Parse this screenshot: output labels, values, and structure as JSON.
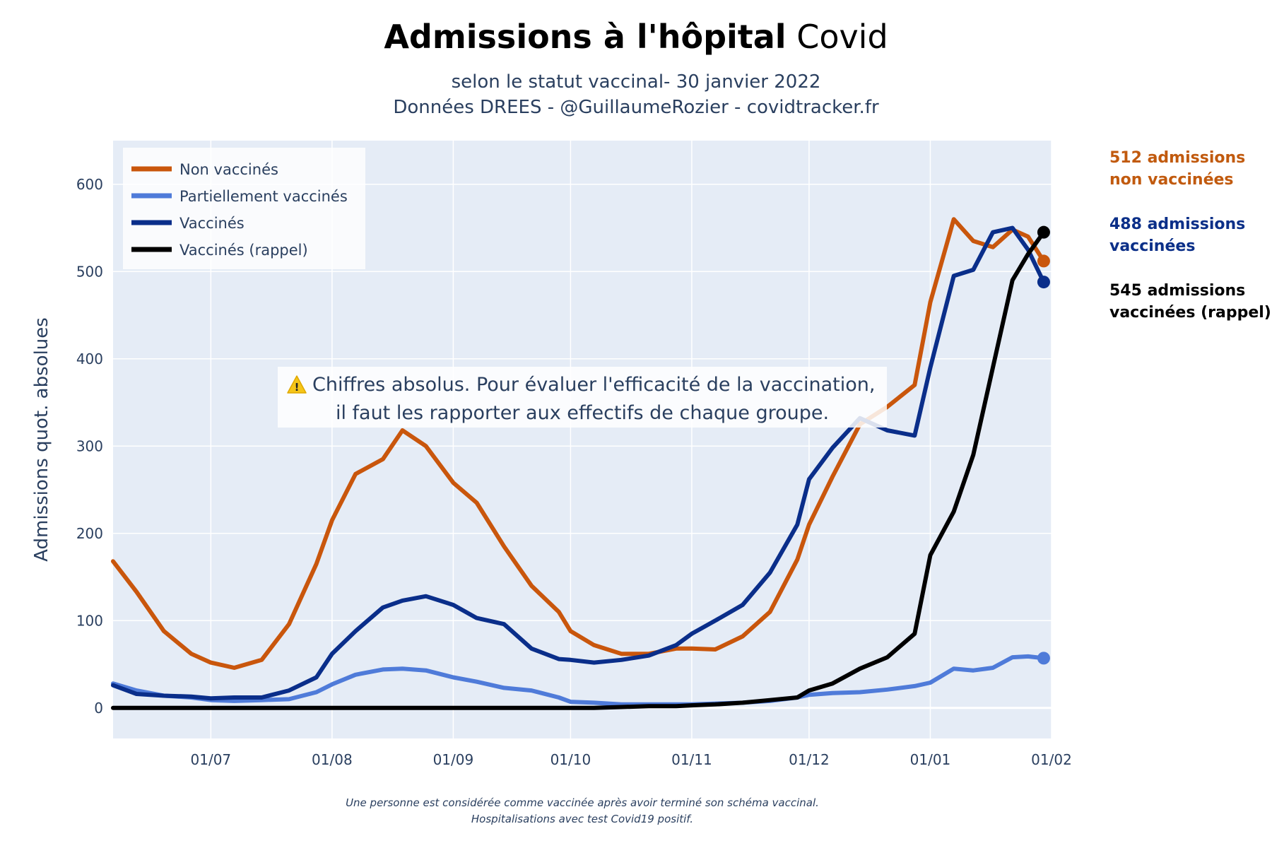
{
  "title_bold": "Admissions à l'hôpital",
  "title_rest": " Covid",
  "subtitle_line1": "selon le statut vaccinal- 30 janvier 2022",
  "subtitle_line2": "Données DREES - @GuillaumeRozier - covidtracker.fr",
  "warning_line1": "Chiffres absolus. Pour évaluer l'efficacité de la vaccination,",
  "warning_line2": "il faut les rapporter aux effectifs de chaque groupe.",
  "footnote_line1": "Une personne est considérée comme vaccinée après avoir terminé son schéma vaccinal.",
  "footnote_line2": "Hospitalisations avec test Covid19 positif.",
  "side_labels": [
    {
      "line1": "512 admissions",
      "line2": "non vaccinées",
      "color": "#c15a0e"
    },
    {
      "line1": "488 admissions",
      "line2": "vaccinées",
      "color": "#0b2f88"
    },
    {
      "line1": "545 admissions",
      "line2": "vaccinées (rappel)",
      "color": "#000000"
    }
  ],
  "chart_data": {
    "type": "line",
    "title": "Admissions à l'hôpital Covid",
    "ylabel": "Admissions quot. absolues",
    "xlabel": "",
    "x_ticks": [
      "01/07",
      "01/08",
      "01/09",
      "01/10",
      "01/11",
      "01/12",
      "01/01",
      "01/02"
    ],
    "y_ticks": [
      0,
      100,
      200,
      300,
      400,
      500,
      600
    ],
    "xlim": [
      "2021-06-06",
      "2022-02-01"
    ],
    "ylim": [
      -35,
      650
    ],
    "legend_position": "top-left",
    "grid": true,
    "x": [
      "2021-06-06",
      "2021-06-12",
      "2021-06-19",
      "2021-06-26",
      "2021-07-01",
      "2021-07-07",
      "2021-07-14",
      "2021-07-21",
      "2021-07-28",
      "2021-08-01",
      "2021-08-07",
      "2021-08-14",
      "2021-08-19",
      "2021-08-25",
      "2021-09-01",
      "2021-09-07",
      "2021-09-14",
      "2021-09-21",
      "2021-09-28",
      "2021-10-01",
      "2021-10-07",
      "2021-10-14",
      "2021-10-21",
      "2021-10-28",
      "2021-11-01",
      "2021-11-07",
      "2021-11-14",
      "2021-11-21",
      "2021-11-28",
      "2021-12-01",
      "2021-12-07",
      "2021-12-14",
      "2021-12-21",
      "2021-12-28",
      "2022-01-01",
      "2022-01-07",
      "2022-01-12",
      "2022-01-17",
      "2022-01-22",
      "2022-01-26",
      "2022-01-30"
    ],
    "series": [
      {
        "name": "Non vaccinés",
        "color": "#c9560c",
        "end_marker": true,
        "values": [
          168,
          133,
          88,
          62,
          52,
          46,
          55,
          96,
          165,
          215,
          268,
          285,
          318,
          300,
          258,
          235,
          185,
          140,
          110,
          88,
          72,
          62,
          62,
          68,
          68,
          67,
          82,
          110,
          170,
          210,
          265,
          325,
          345,
          370,
          465,
          560,
          535,
          528,
          548,
          540,
          512
        ]
      },
      {
        "name": "Partiellement vaccinés",
        "color": "#4f7bd9",
        "end_marker": true,
        "values": [
          28,
          20,
          14,
          12,
          9,
          8,
          9,
          10,
          18,
          27,
          38,
          44,
          45,
          43,
          35,
          30,
          23,
          20,
          12,
          7,
          6,
          4,
          4,
          4,
          4,
          5,
          6,
          8,
          12,
          15,
          17,
          18,
          21,
          25,
          29,
          45,
          43,
          46,
          58,
          59,
          57
        ]
      },
      {
        "name": "Vaccinés",
        "color": "#0a2e8a",
        "end_marker": true,
        "values": [
          26,
          16,
          14,
          13,
          11,
          12,
          12,
          20,
          35,
          62,
          88,
          115,
          123,
          128,
          118,
          103,
          96,
          68,
          56,
          55,
          52,
          55,
          60,
          72,
          85,
          100,
          118,
          155,
          210,
          262,
          298,
          332,
          318,
          312,
          390,
          495,
          502,
          545,
          550,
          525,
          488
        ]
      },
      {
        "name": "Vaccinés (rappel)",
        "color": "#000000",
        "end_marker": true,
        "values": [
          0,
          0,
          0,
          0,
          0,
          0,
          0,
          0,
          0,
          0,
          0,
          0,
          0,
          0,
          0,
          0,
          0,
          0,
          0,
          0,
          0,
          1,
          2,
          2,
          3,
          4,
          6,
          9,
          12,
          20,
          28,
          45,
          58,
          85,
          175,
          225,
          290,
          390,
          490,
          520,
          545
        ]
      }
    ]
  }
}
